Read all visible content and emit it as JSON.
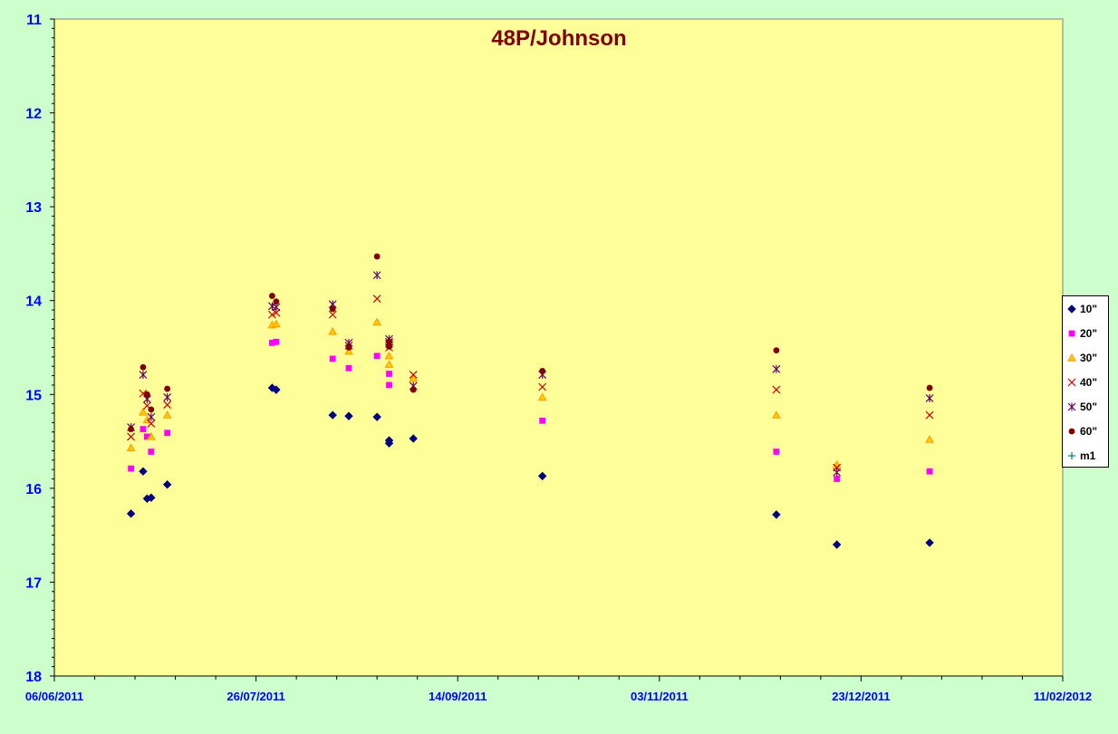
{
  "chart_data": {
    "type": "scatter",
    "title": "48P/Johnson",
    "xlabel": "",
    "ylabel": "",
    "x_axis": {
      "type": "date",
      "min": "2011-06-06",
      "max": "2012-02-11",
      "tick_labels": [
        "06/06/2011",
        "26/07/2011",
        "14/09/2011",
        "03/11/2011",
        "23/12/2011",
        "11/02/2012"
      ]
    },
    "y_axis": {
      "min": 11,
      "max": 18,
      "reversed": true,
      "tick_labels": [
        "11",
        "12",
        "13",
        "14",
        "15",
        "16",
        "17",
        "18"
      ]
    },
    "grid": false,
    "legend_position": "right",
    "colors": {
      "plot_background": "#ffff99",
      "page_background": "#ccffcc",
      "title": "#800000",
      "axis_labels": "#0000ff"
    },
    "series": [
      {
        "name": "10\"",
        "marker": "diamond",
        "color": "#000080",
        "points": [
          [
            "2011-06-25",
            16.27
          ],
          [
            "2011-06-28",
            15.82
          ],
          [
            "2011-06-29",
            16.11
          ],
          [
            "2011-06-30",
            16.1
          ],
          [
            "2011-07-04",
            15.96
          ],
          [
            "2011-07-30",
            14.93
          ],
          [
            "2011-07-31",
            14.95
          ],
          [
            "2011-08-14",
            15.22
          ],
          [
            "2011-08-18",
            15.23
          ],
          [
            "2011-08-25",
            15.24
          ],
          [
            "2011-08-28",
            15.49
          ],
          [
            "2011-08-28",
            15.52
          ],
          [
            "2011-09-03",
            15.47
          ],
          [
            "2011-10-05",
            15.87
          ],
          [
            "2011-12-02",
            16.28
          ],
          [
            "2011-12-17",
            16.6
          ],
          [
            "2012-01-09",
            16.58
          ]
        ]
      },
      {
        "name": "20\"",
        "marker": "square",
        "color": "#ff00ff",
        "points": [
          [
            "2011-06-25",
            15.79
          ],
          [
            "2011-06-28",
            15.37
          ],
          [
            "2011-06-29",
            15.45
          ],
          [
            "2011-06-30",
            15.61
          ],
          [
            "2011-07-04",
            15.41
          ],
          [
            "2011-07-30",
            14.45
          ],
          [
            "2011-07-31",
            14.44
          ],
          [
            "2011-08-14",
            14.62
          ],
          [
            "2011-08-18",
            14.72
          ],
          [
            "2011-08-25",
            14.59
          ],
          [
            "2011-08-28",
            14.78
          ],
          [
            "2011-08-28",
            14.9
          ],
          [
            "2011-10-05",
            15.28
          ],
          [
            "2011-12-02",
            15.61
          ],
          [
            "2011-12-17",
            15.9
          ],
          [
            "2012-01-09",
            15.82
          ]
        ]
      },
      {
        "name": "30\"",
        "marker": "triangle",
        "color": "#ff9900",
        "points": [
          [
            "2011-06-25",
            15.57
          ],
          [
            "2011-06-28",
            15.19
          ],
          [
            "2011-06-29",
            15.27
          ],
          [
            "2011-06-30",
            15.45
          ],
          [
            "2011-07-04",
            15.22
          ],
          [
            "2011-07-30",
            14.26
          ],
          [
            "2011-07-31",
            14.25
          ],
          [
            "2011-08-14",
            14.33
          ],
          [
            "2011-08-18",
            14.54
          ],
          [
            "2011-08-25",
            14.23
          ],
          [
            "2011-08-28",
            14.59
          ],
          [
            "2011-08-28",
            14.68
          ],
          [
            "2011-09-03",
            14.83
          ],
          [
            "2011-10-05",
            15.03
          ],
          [
            "2011-12-02",
            15.22
          ],
          [
            "2011-12-17",
            15.75
          ],
          [
            "2012-01-09",
            15.48
          ]
        ]
      },
      {
        "name": "40\"",
        "marker": "x",
        "color": "#cc0000",
        "points": [
          [
            "2011-06-25",
            15.45
          ],
          [
            "2011-06-28",
            14.99
          ],
          [
            "2011-06-29",
            15.12
          ],
          [
            "2011-06-30",
            15.31
          ],
          [
            "2011-07-04",
            15.11
          ],
          [
            "2011-07-30",
            14.15
          ],
          [
            "2011-07-31",
            14.13
          ],
          [
            "2011-08-14",
            14.15
          ],
          [
            "2011-08-18",
            14.48
          ],
          [
            "2011-08-25",
            13.98
          ],
          [
            "2011-08-28",
            14.46
          ],
          [
            "2011-08-28",
            14.5
          ],
          [
            "2011-09-03",
            14.79
          ],
          [
            "2011-10-05",
            14.92
          ],
          [
            "2011-12-02",
            14.95
          ],
          [
            "2011-12-17",
            15.78
          ],
          [
            "2012-01-09",
            15.22
          ]
        ]
      },
      {
        "name": "50\"",
        "marker": "star",
        "color": "#660066",
        "points": [
          [
            "2011-06-25",
            15.35
          ],
          [
            "2011-06-28",
            14.79
          ],
          [
            "2011-06-29",
            15.05
          ],
          [
            "2011-06-30",
            15.24
          ],
          [
            "2011-07-04",
            15.03
          ],
          [
            "2011-07-30",
            14.06
          ],
          [
            "2011-07-31",
            14.07
          ],
          [
            "2011-08-14",
            14.04
          ],
          [
            "2011-08-18",
            14.45
          ],
          [
            "2011-08-25",
            13.73
          ],
          [
            "2011-08-28",
            14.41
          ],
          [
            "2011-08-28",
            14.44
          ],
          [
            "2011-09-03",
            14.91
          ],
          [
            "2011-10-05",
            14.79
          ],
          [
            "2011-12-02",
            14.73
          ],
          [
            "2011-12-17",
            15.83
          ],
          [
            "2012-01-09",
            15.04
          ]
        ]
      },
      {
        "name": "60\"",
        "marker": "circle",
        "color": "#800000",
        "points": [
          [
            "2011-06-25",
            15.37
          ],
          [
            "2011-06-28",
            14.71
          ],
          [
            "2011-06-29",
            15.0
          ],
          [
            "2011-06-30",
            15.16
          ],
          [
            "2011-07-04",
            14.94
          ],
          [
            "2011-07-30",
            13.95
          ],
          [
            "2011-07-31",
            14.01
          ],
          [
            "2011-08-14",
            14.09
          ],
          [
            "2011-08-18",
            14.5
          ],
          [
            "2011-08-25",
            13.53
          ],
          [
            "2011-08-28",
            14.44
          ],
          [
            "2011-08-28",
            14.49
          ],
          [
            "2011-09-03",
            14.95
          ],
          [
            "2011-10-05",
            14.75
          ],
          [
            "2011-12-02",
            14.53
          ],
          [
            "2012-01-09",
            14.93
          ]
        ]
      },
      {
        "name": "m1",
        "marker": "plus",
        "color": "#008080",
        "points": []
      }
    ]
  }
}
